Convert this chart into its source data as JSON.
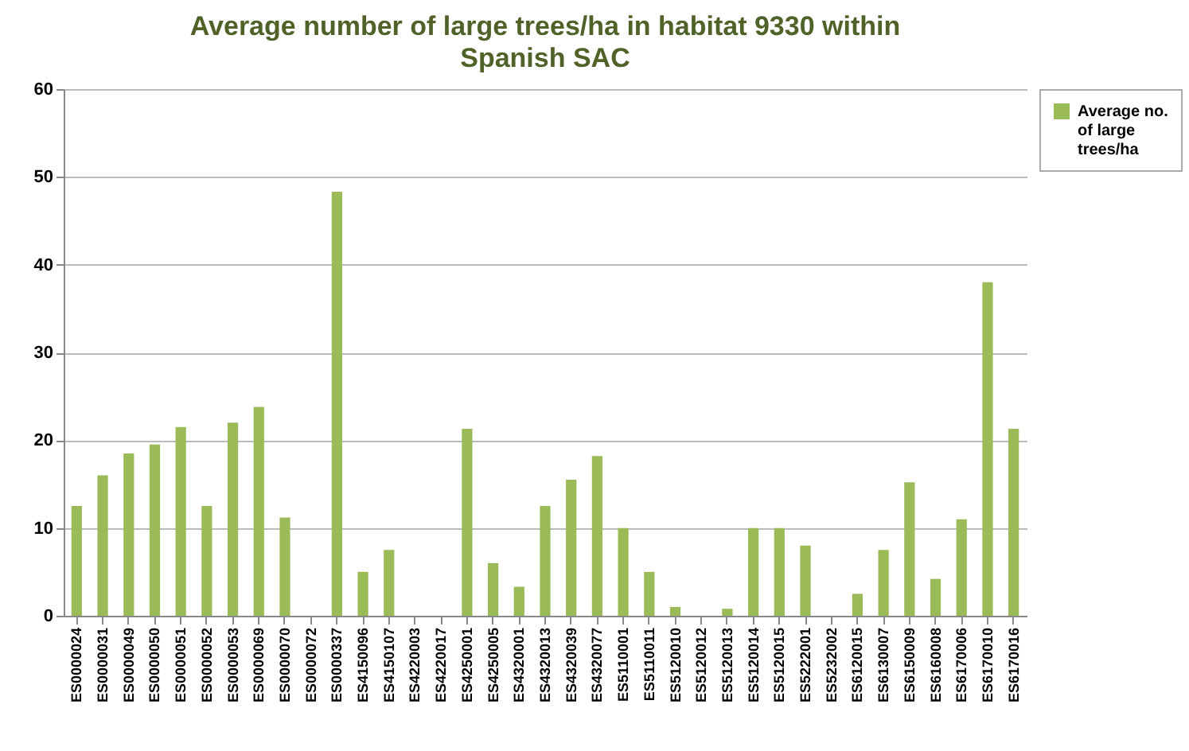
{
  "chart_data": {
    "type": "bar",
    "title": "Average number of large trees/ha in habitat 9330 within Spanish SAC",
    "categories": [
      "ES0000024",
      "ES0000031",
      "ES0000049",
      "ES0000050",
      "ES0000051",
      "ES0000052",
      "ES0000053",
      "ES0000069",
      "ES0000070",
      "ES0000072",
      "ES0000337",
      "ES4150096",
      "ES4150107",
      "ES4220003",
      "ES4220017",
      "ES4250001",
      "ES4250005",
      "ES4320001",
      "ES4320013",
      "ES4320039",
      "ES4320077",
      "ES5110001",
      "ES5110011",
      "ES5120010",
      "ES5120012",
      "ES5120013",
      "ES5120014",
      "ES5120015",
      "ES5222001",
      "ES5232002",
      "ES6120015",
      "ES6130007",
      "ES6150009",
      "ES6160008",
      "ES6170006",
      "ES6170010",
      "ES6170016"
    ],
    "series": [
      {
        "name": "Average no. of large trees/ha",
        "color": "#9bbb59",
        "values": [
          12.5,
          16,
          18.5,
          19.5,
          21.5,
          12.5,
          22,
          23.8,
          11.2,
          0,
          48.3,
          5,
          7.5,
          0,
          0,
          21.3,
          6,
          3.3,
          12.5,
          15.5,
          18.2,
          10,
          5,
          1,
          0,
          0.8,
          10,
          10,
          8,
          0,
          2.5,
          7.5,
          15.2,
          4.2,
          11,
          38,
          21.3
        ]
      }
    ],
    "ylim": [
      0,
      60
    ],
    "yticks": [
      0,
      10,
      20,
      30,
      40,
      50,
      60
    ],
    "grid": "y",
    "legend": "right"
  }
}
